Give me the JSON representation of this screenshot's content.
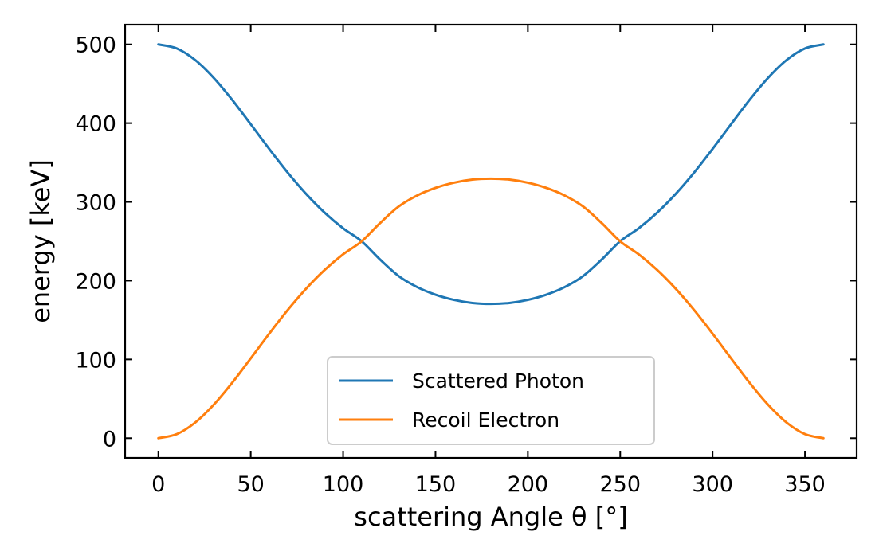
{
  "chart_data": {
    "type": "line",
    "title": "",
    "xlabel": "scattering Angle θ [°]",
    "ylabel": "energy [keV]",
    "xlim": [
      -18,
      378
    ],
    "ylim": [
      -25,
      525
    ],
    "xticks": [
      0,
      50,
      100,
      150,
      200,
      250,
      300,
      350
    ],
    "yticks": [
      0,
      100,
      200,
      300,
      400,
      500
    ],
    "grid": false,
    "legend_position": "lower-center",
    "x": [
      0,
      10,
      20,
      30,
      40,
      50,
      60,
      70,
      80,
      90,
      100,
      110,
      120,
      130,
      140,
      150,
      160,
      170,
      180,
      190,
      200,
      210,
      220,
      230,
      240,
      250,
      260,
      270,
      280,
      290,
      300,
      310,
      320,
      330,
      340,
      350,
      360
    ],
    "series": [
      {
        "name": "Scattered Photon",
        "color": "#1f77b4",
        "values": [
          500.0,
          494.8,
          480.0,
          457.4,
          429.5,
          398.6,
          367.3,
          337.3,
          310.1,
          286.4,
          266.5,
          250.1,
          226.9,
          206.0,
          191.9,
          182.2,
          175.6,
          171.7,
          170.5,
          171.7,
          175.6,
          182.2,
          191.9,
          206.0,
          226.9,
          250.1,
          266.5,
          286.4,
          310.1,
          337.3,
          367.3,
          398.6,
          429.5,
          457.4,
          480.0,
          494.8,
          500.0
        ]
      },
      {
        "name": "Recoil Electron",
        "color": "#ff7f0e",
        "values": [
          0.0,
          5.2,
          20.0,
          42.6,
          70.5,
          101.4,
          132.7,
          162.7,
          189.9,
          213.6,
          233.5,
          249.9,
          273.1,
          294.0,
          308.1,
          317.8,
          324.4,
          328.3,
          329.5,
          328.3,
          324.4,
          317.8,
          308.1,
          294.0,
          273.1,
          249.9,
          233.5,
          213.6,
          189.9,
          162.7,
          132.7,
          101.4,
          70.5,
          42.6,
          20.0,
          5.2,
          0.0
        ]
      }
    ]
  }
}
